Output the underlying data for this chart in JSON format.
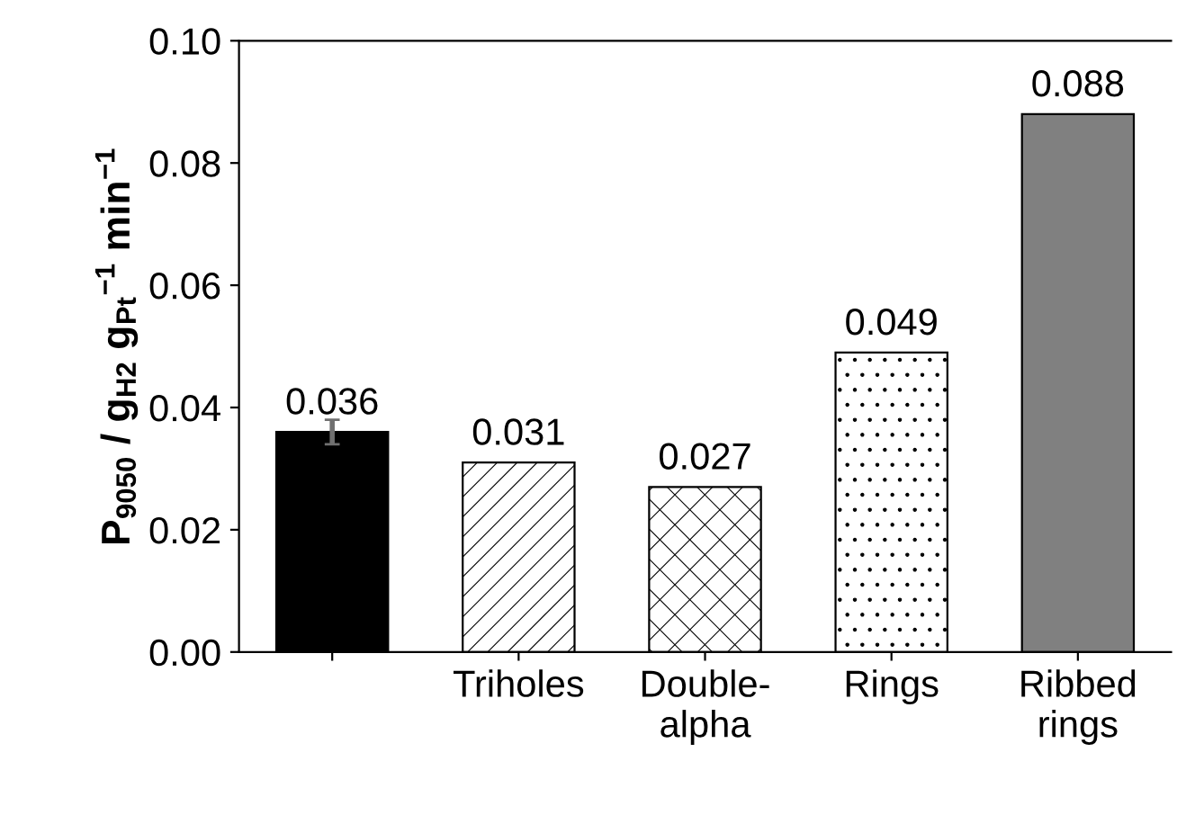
{
  "chart_data": {
    "type": "bar",
    "ylabel": "P$_{9050}$ / g$_{H2}$ g$_{Pt}$$^{−1}$ min$^{−1}$",
    "categories": [
      null,
      "Triholes",
      "Double-\nalpha",
      "Rings",
      "Ribbed\nrings"
    ],
    "values": [
      0.036,
      0.031,
      0.027,
      0.049,
      0.088
    ],
    "colors": [
      "#000000",
      "#ffffff",
      "#ffffff",
      "#ffffff",
      "#808080"
    ],
    "errors": [
      0.002,
      null,
      null,
      null,
      null
    ],
    "value_labels": [
      "0.036",
      "0.031",
      "0.027",
      "0.049",
      "0.088"
    ],
    "ylim": [
      0,
      0.1
    ],
    "yticks": [
      {
        "value": 0,
        "label": "0.00"
      },
      {
        "value": 0.02,
        "label": "0.02"
      },
      {
        "value": 0.04,
        "label": "0.04"
      },
      {
        "value": 0.06,
        "label": "0.06"
      },
      {
        "value": 0.08,
        "label": "0.08"
      },
      {
        "value": 0.1,
        "label": "0.10"
      }
    ],
    "grid": false,
    "legend": false
  }
}
